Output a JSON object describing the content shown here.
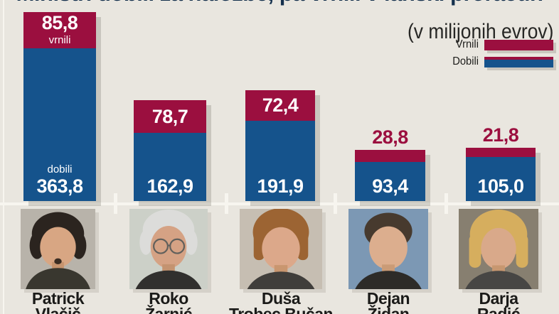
{
  "title": "Ministri dobili za naložbe, pa vrnili v lanski proračun",
  "subtitle": "(v milijonih evrov)",
  "legend": {
    "vrnili": "Vrnili",
    "dobili": "Dobili"
  },
  "colors": {
    "red": "#9b0f3f",
    "blue": "#15538c",
    "background": "#e9e6df",
    "title": "#14304d"
  },
  "bars": [
    {
      "first": "Patrick",
      "last": "Vlačič",
      "vrnili_label": "85,8",
      "vrnili_sub": "vrnili",
      "dobili_sub": "dobili",
      "dobili_label": "363,8"
    },
    {
      "first": "Roko",
      "last": "Žarnić",
      "vrnili_label": "78,7",
      "dobili_label": "162,9"
    },
    {
      "first": "Duša",
      "last": "Trobec Bučan",
      "vrnili_label": "72,4",
      "dobili_label": "191,9"
    },
    {
      "first": "Dejan",
      "last": "Židan",
      "vrnili_label": "28,8",
      "dobili_label": "93,4"
    },
    {
      "first": "Darja",
      "last": "Radić",
      "vrnili_label": "21,8",
      "dobili_label": "105,0"
    }
  ],
  "chart_data": {
    "type": "bar",
    "subtype": "stacked",
    "orientation": "vertical",
    "categories": [
      "Patrick Vlačič",
      "Roko Žarnić",
      "Duša Trobec Bučan",
      "Dejan Židan",
      "Darja Radić"
    ],
    "series": [
      {
        "name": "Vrnili",
        "color": "#9b0f3f",
        "values": [
          85.8,
          78.7,
          72.4,
          28.8,
          21.8
        ]
      },
      {
        "name": "Dobili",
        "color": "#15538c",
        "values": [
          363.8,
          162.9,
          191.9,
          93.4,
          105.0
        ]
      }
    ],
    "title": "Ministri dobili za naložbe, pa vrnili v lanski proračun",
    "subtitle": "(v milijonih evrov)",
    "unit": "milijonov evrov",
    "legend_position": "top-right",
    "grid": false,
    "axis_labels_visible": false
  }
}
